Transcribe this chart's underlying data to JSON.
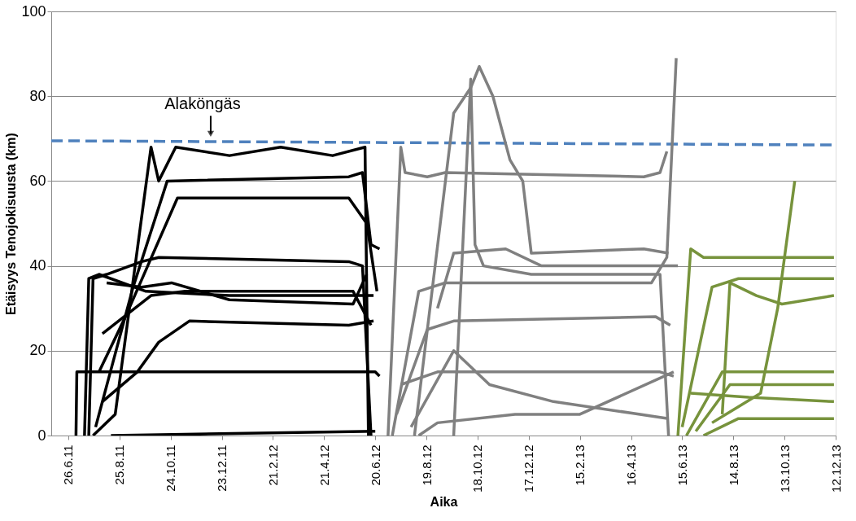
{
  "chart_data": {
    "type": "line",
    "xlabel": "Aika",
    "ylabel": "Etäisyys Tenojokisuusta (km)",
    "xlim": [
      "2011-06-06",
      "2013-12-12"
    ],
    "xticks": [
      {
        "value": "2011-06-26",
        "label": "26.6.11"
      },
      {
        "value": "2011-08-25",
        "label": "25.8.11"
      },
      {
        "value": "2011-10-24",
        "label": "24.10.11"
      },
      {
        "value": "2011-12-23",
        "label": "23.12.11"
      },
      {
        "value": "2012-02-21",
        "label": "21.2.12"
      },
      {
        "value": "2012-04-21",
        "label": "21.4.12"
      },
      {
        "value": "2012-06-20",
        "label": "20.6.12"
      },
      {
        "value": "2012-08-19",
        "label": "19.8.12"
      },
      {
        "value": "2012-10-18",
        "label": "18.10.12"
      },
      {
        "value": "2012-12-17",
        "label": "17.12.12"
      },
      {
        "value": "2013-02-15",
        "label": "15.2.13"
      },
      {
        "value": "2013-04-16",
        "label": "16.4.13"
      },
      {
        "value": "2013-06-15",
        "label": "15.6.13"
      },
      {
        "value": "2013-08-14",
        "label": "14.8.13"
      },
      {
        "value": "2013-10-13",
        "label": "13.10.13"
      },
      {
        "value": "2013-12-12",
        "label": "12.12.13"
      }
    ],
    "ylim": [
      0,
      100
    ],
    "yticks": [
      0,
      20,
      40,
      60,
      80,
      100
    ],
    "grid": "y",
    "marker": "none",
    "line_style": "solid",
    "legend": false,
    "annotations": [
      {
        "text": "Alaköngäs",
        "x": "2011-12-10",
        "y": 70
      }
    ],
    "series": [
      {
        "color": "#4f81bd",
        "line_style": "dashed",
        "x": [
          "2011-06-06",
          "2013-12-12"
        ],
        "values": [
          69.5,
          68.5
        ]
      },
      {
        "color": "#000000",
        "x": [
          "2011-07-05",
          "2011-07-06",
          "2012-06-20",
          "2012-06-25"
        ],
        "values": [
          0,
          15,
          15,
          14
        ]
      },
      {
        "color": "#000000",
        "x": [
          "2011-07-20",
          "2011-07-25",
          "2011-08-10",
          "2011-09-20",
          "2011-10-10",
          "2012-05-20",
          "2012-06-05",
          "2012-06-15"
        ],
        "values": [
          0,
          37,
          38,
          41,
          42,
          41,
          40,
          0
        ]
      },
      {
        "color": "#000000",
        "x": [
          "2011-07-25",
          "2011-08-20",
          "2011-10-01",
          "2011-10-10",
          "2011-10-30",
          "2012-01-01",
          "2012-03-01",
          "2012-05-01",
          "2012-06-08",
          "2012-06-12"
        ],
        "values": [
          0,
          5,
          68,
          60,
          68,
          66,
          68,
          66,
          68,
          0
        ]
      },
      {
        "color": "#000000",
        "x": [
          "2011-07-28",
          "2011-09-10",
          "2011-10-20",
          "2012-05-20",
          "2012-06-05",
          "2012-06-15",
          "2012-06-25"
        ],
        "values": [
          2,
          35,
          60,
          61,
          62,
          45,
          44
        ]
      },
      {
        "color": "#000000",
        "x": [
          "2011-08-01",
          "2011-09-01",
          "2011-11-01",
          "2012-05-20",
          "2012-06-10",
          "2012-06-22"
        ],
        "values": [
          15,
          28,
          56,
          56,
          50,
          34
        ]
      },
      {
        "color": "#000000",
        "x": [
          "2011-08-05",
          "2011-10-01",
          "2011-11-10",
          "2012-05-25",
          "2012-06-15"
        ],
        "values": [
          24,
          33,
          34,
          34,
          26
        ]
      },
      {
        "color": "#000000",
        "x": [
          "2011-08-10",
          "2011-09-20",
          "2011-10-25",
          "2012-01-01",
          "2012-05-25",
          "2012-06-10"
        ],
        "values": [
          36,
          35,
          36,
          32,
          31,
          38
        ]
      },
      {
        "color": "#000000",
        "x": [
          "2011-08-05",
          "2011-09-15",
          "2011-10-10",
          "2011-11-15",
          "2012-05-20",
          "2012-06-18"
        ],
        "values": [
          8,
          15,
          22,
          27,
          26,
          27
        ]
      },
      {
        "color": "#000000",
        "x": [
          "2011-08-15",
          "2012-06-20"
        ],
        "values": [
          0,
          1
        ]
      },
      {
        "color": "#000000",
        "x": [
          "2011-07-15",
          "2011-07-20",
          "2011-08-01",
          "2011-09-25",
          "2012-01-01",
          "2012-06-18"
        ],
        "values": [
          0,
          37,
          38,
          34,
          33,
          33
        ]
      },
      {
        "color": "#808080",
        "x": [
          "2012-07-05",
          "2012-07-20",
          "2012-07-25",
          "2012-08-20",
          "2012-09-10",
          "2013-05-01",
          "2013-05-20",
          "2013-05-28"
        ],
        "values": [
          0,
          68,
          62,
          61,
          62,
          61,
          62,
          67
        ]
      },
      {
        "color": "#808080",
        "x": [
          "2012-08-05",
          "2012-09-20",
          "2012-10-10",
          "2012-10-20",
          "2012-11-05",
          "2012-11-25",
          "2012-12-10",
          "2012-12-20",
          "2013-05-01",
          "2013-05-30"
        ],
        "values": [
          0,
          76,
          82,
          87,
          80,
          65,
          60,
          43,
          44,
          43
        ]
      },
      {
        "color": "#808080",
        "x": [
          "2012-09-20",
          "2012-10-10",
          "2012-10-15",
          "2012-10-25",
          "2012-12-20",
          "2013-05-20",
          "2013-05-30"
        ],
        "values": [
          0,
          84,
          45,
          40,
          38,
          38,
          0
        ]
      },
      {
        "color": "#808080",
        "x": [
          "2012-07-10",
          "2012-08-10",
          "2012-09-10",
          "2013-05-10",
          "2013-05-28",
          "2013-06-08"
        ],
        "values": [
          0,
          34,
          36,
          36,
          42,
          89
        ]
      },
      {
        "color": "#808080",
        "x": [
          "2012-07-15",
          "2012-08-20",
          "2012-09-20",
          "2013-05-15",
          "2013-06-01"
        ],
        "values": [
          5,
          25,
          27,
          28,
          26
        ]
      },
      {
        "color": "#808080",
        "x": [
          "2012-07-20",
          "2012-09-01",
          "2013-05-20",
          "2013-06-05"
        ],
        "values": [
          12,
          15,
          15,
          14
        ]
      },
      {
        "color": "#808080",
        "x": [
          "2012-08-01",
          "2012-09-20",
          "2012-11-01",
          "2013-01-15",
          "2013-05-30"
        ],
        "values": [
          2,
          20,
          12,
          8,
          4
        ]
      },
      {
        "color": "#808080",
        "x": [
          "2012-08-10",
          "2012-09-01",
          "2012-12-01",
          "2013-02-15",
          "2013-06-05"
        ],
        "values": [
          0,
          3,
          5,
          5,
          15
        ]
      },
      {
        "color": "#808080",
        "x": [
          "2012-09-01",
          "2012-09-20",
          "2012-11-20",
          "2013-01-01",
          "2013-05-01",
          "2013-06-10"
        ],
        "values": [
          30,
          43,
          44,
          40,
          40,
          40
        ]
      },
      {
        "color": "#77933c",
        "x": [
          "2013-06-10",
          "2013-06-25",
          "2013-07-10",
          "2013-12-10"
        ],
        "values": [
          0,
          44,
          42,
          42
        ]
      },
      {
        "color": "#77933c",
        "x": [
          "2013-06-15",
          "2013-07-20",
          "2013-08-20",
          "2013-12-10"
        ],
        "values": [
          2,
          35,
          37,
          37
        ]
      },
      {
        "color": "#77933c",
        "x": [
          "2013-06-20",
          "2013-08-01",
          "2013-12-10"
        ],
        "values": [
          0,
          15,
          15
        ]
      },
      {
        "color": "#77933c",
        "x": [
          "2013-07-01",
          "2013-08-10",
          "2013-12-10"
        ],
        "values": [
          1,
          12,
          12
        ]
      },
      {
        "color": "#77933c",
        "x": [
          "2013-07-10",
          "2013-08-20",
          "2013-12-10"
        ],
        "values": [
          0,
          4,
          4
        ]
      },
      {
        "color": "#77933c",
        "x": [
          "2013-07-20",
          "2013-09-15",
          "2013-10-05",
          "2013-10-25"
        ],
        "values": [
          3,
          10,
          30,
          60
        ]
      },
      {
        "color": "#77933c",
        "x": [
          "2013-08-01",
          "2013-08-10",
          "2013-09-10",
          "2013-10-10",
          "2013-12-10"
        ],
        "values": [
          5,
          36,
          33,
          31,
          33
        ]
      },
      {
        "color": "#77933c",
        "x": [
          "2013-06-25",
          "2013-09-01",
          "2013-12-10"
        ],
        "values": [
          10,
          9,
          8
        ]
      }
    ]
  }
}
